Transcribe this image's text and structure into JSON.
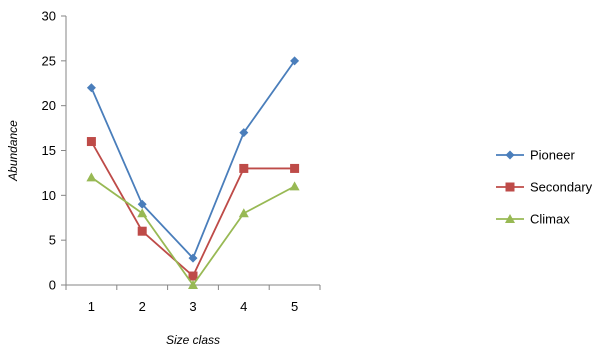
{
  "chart_data": {
    "type": "line",
    "title": "",
    "xlabel": "Size class",
    "ylabel": "Abundance",
    "categories": [
      "1",
      "2",
      "3",
      "4",
      "5"
    ],
    "ylim": [
      0,
      30
    ],
    "yticks": [
      0,
      5,
      10,
      15,
      20,
      25,
      30
    ],
    "grid": false,
    "legend_position": "right",
    "series": [
      {
        "name": "Pioneer",
        "values": [
          22,
          9,
          3,
          17,
          25
        ],
        "color": "#4A7EBB",
        "marker": "diamond"
      },
      {
        "name": "Secondary",
        "values": [
          16,
          6,
          1,
          13,
          13
        ],
        "color": "#BE4B48",
        "marker": "square"
      },
      {
        "name": "Climax",
        "values": [
          12,
          8,
          0,
          8,
          11
        ],
        "color": "#98B954",
        "marker": "triangle"
      }
    ]
  }
}
